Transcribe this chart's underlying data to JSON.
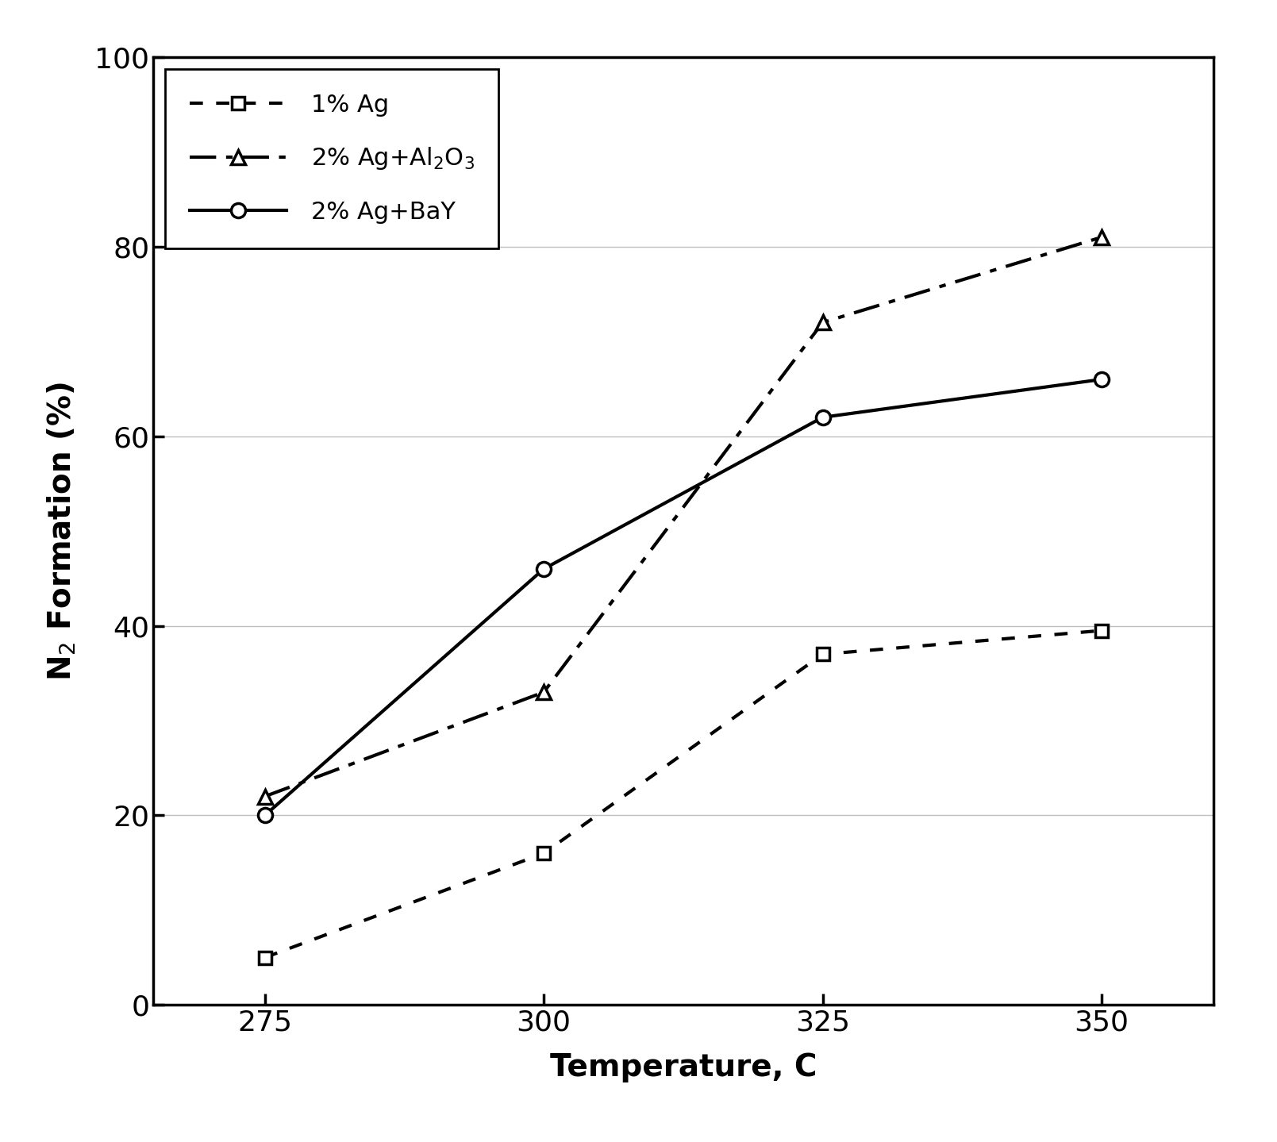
{
  "temperature": [
    275,
    300,
    325,
    350
  ],
  "series": [
    {
      "label": "1% Ag",
      "values": [
        5,
        16,
        37,
        39.5
      ],
      "marker": "s",
      "linewidth": 3.0,
      "markersize": 12,
      "color": "black",
      "linestyle": "dotted"
    },
    {
      "label": "2% Ag+Al$_2$O$_3$",
      "values": [
        22,
        33,
        72,
        81
      ],
      "marker": "^",
      "linewidth": 3.0,
      "markersize": 13,
      "color": "black",
      "linestyle": "dashdot"
    },
    {
      "label": "2% Ag+BaY",
      "values": [
        20,
        46,
        62,
        66
      ],
      "marker": "o",
      "linewidth": 3.0,
      "markersize": 13,
      "color": "black",
      "linestyle": "solid"
    }
  ],
  "xlabel": "Temperature, C",
  "ylabel": "N$_2$ Formation (%)",
  "xlim": [
    265,
    360
  ],
  "ylim": [
    0,
    100
  ],
  "xticks": [
    275,
    300,
    325,
    350
  ],
  "yticks": [
    0,
    20,
    40,
    60,
    80,
    100
  ],
  "background_color": "#ffffff",
  "legend_loc": "upper left",
  "axis_fontsize": 28,
  "tick_fontsize": 26,
  "legend_fontsize": 22,
  "figwidth": 16.09,
  "figheight": 14.39,
  "dpi": 100
}
